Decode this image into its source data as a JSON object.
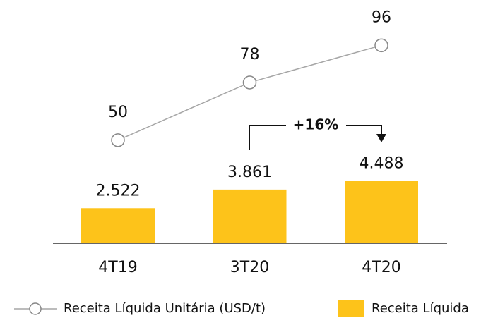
{
  "chart_data": {
    "type": "bar_line",
    "annotation": "+16%",
    "categories": [
      "4T19",
      "3T20",
      "4T20"
    ],
    "series": [
      {
        "name": "Receita Líquida Unitária (USD/t)",
        "type": "line",
        "axis": "y2",
        "color": "#a6a6a6",
        "values": [
          50,
          78,
          96
        ]
      },
      {
        "name": "Receita Líquida",
        "type": "bar",
        "color": "#fdc31a",
        "values": [
          2522,
          3861,
          4488
        ],
        "value_labels": [
          "2.522",
          "3.861",
          "4.488"
        ]
      }
    ],
    "ylim": [
      0,
      17500
    ],
    "y2lim": [
      0,
      118
    ]
  }
}
